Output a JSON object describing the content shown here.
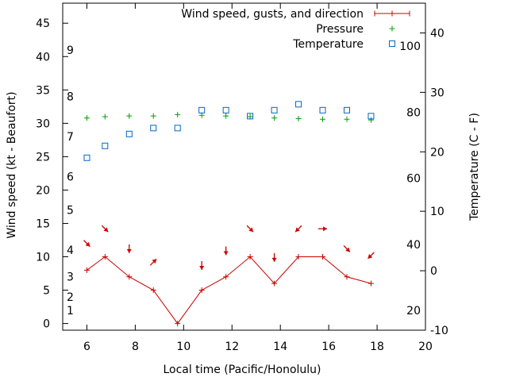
{
  "chart_data": {
    "type": "line",
    "xlabel": "Local time (Pacific/Honolulu)",
    "ylabel_left": "Wind speed (kt - Beaufort)",
    "ylabel_right": "Temperature (C - F)",
    "xlim": [
      5,
      20
    ],
    "x_ticks": [
      6,
      8,
      10,
      12,
      14,
      16,
      18,
      20
    ],
    "ylim_left": [
      -1,
      48
    ],
    "y_ticks_left": [
      0,
      5,
      10,
      15,
      20,
      25,
      30,
      35,
      40,
      45
    ],
    "beaufort_ticks": [
      {
        "label": "1",
        "kt": 2
      },
      {
        "label": "2",
        "kt": 4
      },
      {
        "label": "3",
        "kt": 7
      },
      {
        "label": "4",
        "kt": 11
      },
      {
        "label": "5",
        "kt": 17
      },
      {
        "label": "6",
        "kt": 22
      },
      {
        "label": "7",
        "kt": 28
      },
      {
        "label": "8",
        "kt": 34
      },
      {
        "label": "9",
        "kt": 41
      }
    ],
    "ylim_right_c": [
      -10,
      45
    ],
    "y_ticks_c": [
      -10,
      0,
      10,
      20,
      30,
      40
    ],
    "fahrenheit_ticks": [
      20,
      40,
      60,
      80,
      100
    ],
    "grid": false,
    "legend_position": "top-right",
    "series": [
      {
        "name": "Wind speed, gusts, and direction",
        "color": "#cc0000",
        "marker": "plus",
        "x": [
          6,
          6.75,
          7.75,
          8.75,
          9.75,
          10.75,
          11.75,
          12.75,
          13.75,
          14.75,
          15.75,
          16.75,
          17.75
        ],
        "y": [
          8,
          10,
          7,
          5,
          0,
          5,
          7,
          10,
          6,
          10,
          10,
          7,
          6
        ],
        "direction_arrows": [
          {
            "x": 6,
            "y": 12,
            "dir": "SE"
          },
          {
            "x": 6.75,
            "y": 14.2,
            "dir": "SE"
          },
          {
            "x": 7.75,
            "y": 11.2,
            "dir": "S"
          },
          {
            "x": 8.75,
            "y": 9.2,
            "dir": "NE"
          },
          {
            "x": 10.75,
            "y": 8.7,
            "dir": "S"
          },
          {
            "x": 11.75,
            "y": 10.9,
            "dir": "S"
          },
          {
            "x": 12.75,
            "y": 14.2,
            "dir": "SE"
          },
          {
            "x": 13.75,
            "y": 9.9,
            "dir": "S"
          },
          {
            "x": 14.75,
            "y": 14.2,
            "dir": "SW"
          },
          {
            "x": 15.75,
            "y": 14.2,
            "dir": "E"
          },
          {
            "x": 16.75,
            "y": 11.2,
            "dir": "SE"
          },
          {
            "x": 17.75,
            "y": 10.2,
            "dir": "SW"
          }
        ]
      },
      {
        "name": "Pressure",
        "color": "#00a000",
        "marker": "plus",
        "x": [
          6,
          6.75,
          7.75,
          8.75,
          9.75,
          10.75,
          11.75,
          12.75,
          13.75,
          14.75,
          15.75,
          16.75,
          17.75
        ],
        "y_wind_scale": [
          30.8,
          31.0,
          31.1,
          31.1,
          31.3,
          31.2,
          31.1,
          31.0,
          30.8,
          30.7,
          30.6,
          30.6,
          30.5
        ]
      },
      {
        "name": "Temperature",
        "color": "#0066cc",
        "marker": "square",
        "x": [
          6,
          6.75,
          7.75,
          8.75,
          9.75,
          10.75,
          11.75,
          12.75,
          13.75,
          14.75,
          15.75,
          16.75,
          17.75
        ],
        "y_c": [
          19,
          21,
          23,
          24,
          24,
          27,
          27,
          26,
          27,
          28,
          27,
          27,
          26
        ]
      }
    ]
  }
}
